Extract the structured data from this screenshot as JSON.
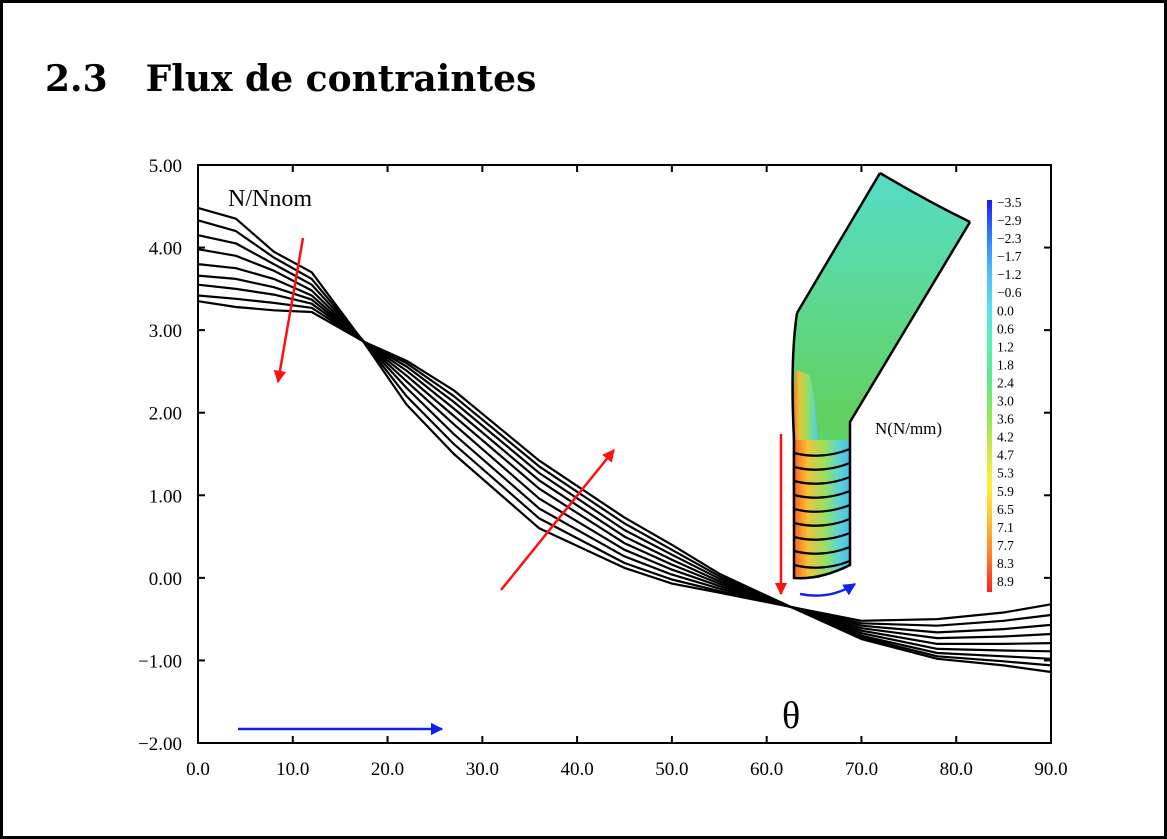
{
  "section": {
    "number": "2.3",
    "title": "Flux de contraintes"
  },
  "chart_data": {
    "type": "line",
    "title": "",
    "xlabel": "θ",
    "ylabel": "N/Nnom",
    "xlim": [
      0,
      90
    ],
    "ylim": [
      -2,
      5
    ],
    "x_ticks": [
      "0.0",
      "10.0",
      "20.0",
      "30.0",
      "40.0",
      "50.0",
      "60.0",
      "70.0",
      "80.0",
      "90.0"
    ],
    "y_ticks": [
      "5.00",
      "4.00",
      "3.00",
      "2.00",
      "1.00",
      "0.00",
      "−1.00",
      "−2.00"
    ],
    "x": [
      0,
      4,
      8,
      12,
      17.5,
      22,
      27,
      36,
      45,
      50,
      55,
      62.5,
      70,
      78,
      85,
      90
    ],
    "series": [
      {
        "values": [
          4.48,
          4.35,
          3.95,
          3.7,
          2.85,
          2.1,
          1.5,
          0.6,
          0.12,
          -0.07,
          -0.18,
          -0.35,
          -0.52,
          -0.5,
          -0.42,
          -0.32
        ]
      },
      {
        "values": [
          4.33,
          4.2,
          3.88,
          3.62,
          2.86,
          2.2,
          1.62,
          0.72,
          0.18,
          -0.02,
          -0.16,
          -0.35,
          -0.55,
          -0.58,
          -0.52,
          -0.45
        ]
      },
      {
        "values": [
          4.15,
          4.05,
          3.8,
          3.55,
          2.86,
          2.3,
          1.74,
          0.84,
          0.26,
          0.04,
          -0.13,
          -0.35,
          -0.58,
          -0.66,
          -0.62,
          -0.57
        ]
      },
      {
        "values": [
          3.98,
          3.9,
          3.72,
          3.48,
          2.86,
          2.38,
          1.86,
          0.96,
          0.34,
          0.1,
          -0.1,
          -0.35,
          -0.61,
          -0.73,
          -0.71,
          -0.68
        ]
      },
      {
        "values": [
          3.8,
          3.75,
          3.62,
          3.42,
          2.86,
          2.45,
          1.96,
          1.08,
          0.42,
          0.16,
          -0.07,
          -0.35,
          -0.64,
          -0.8,
          -0.8,
          -0.79
        ]
      },
      {
        "values": [
          3.66,
          3.62,
          3.52,
          3.37,
          2.86,
          2.51,
          2.05,
          1.18,
          0.5,
          0.22,
          -0.04,
          -0.35,
          -0.67,
          -0.86,
          -0.88,
          -0.89
        ]
      },
      {
        "values": [
          3.55,
          3.5,
          3.43,
          3.32,
          2.86,
          2.56,
          2.13,
          1.27,
          0.58,
          0.28,
          -0.01,
          -0.35,
          -0.7,
          -0.91,
          -0.95,
          -0.98
        ]
      },
      {
        "values": [
          3.42,
          3.38,
          3.33,
          3.27,
          2.86,
          2.6,
          2.2,
          1.35,
          0.66,
          0.34,
          0.02,
          -0.35,
          -0.72,
          -0.95,
          -1.01,
          -1.06
        ]
      },
      {
        "values": [
          3.35,
          3.28,
          3.24,
          3.22,
          2.86,
          2.63,
          2.27,
          1.42,
          0.73,
          0.4,
          0.05,
          -0.35,
          -0.74,
          -0.98,
          -1.06,
          -1.14
        ]
      }
    ]
  },
  "annotations": {
    "y_axis_label": "N/Nnom",
    "x_axis_symbol": "θ",
    "inset_label": "N(N/mm)"
  },
  "colorbar": {
    "labels": [
      "−3.5",
      "−2.9",
      "−2.3",
      "−1.7",
      "−1.2",
      "−0.6",
      "0.0",
      "0.6",
      "1.2",
      "1.8",
      "2.4",
      "3.0",
      "3.6",
      "4.2",
      "4.7",
      "5.3",
      "5.9",
      "6.5",
      "7.1",
      "7.7",
      "8.3",
      "8.9"
    ],
    "gradient": [
      "#1a1aff",
      "#2f7dff",
      "#4fbcff",
      "#54e0ee",
      "#5cf0b8",
      "#5ee88a",
      "#8de85a",
      "#cfe84a",
      "#fff03a",
      "#ffc030",
      "#ff7a2a",
      "#ff2020"
    ]
  },
  "colors": {
    "curves": "#000000",
    "red_arrows": "#ff1010",
    "blue_arrows": "#1020f0"
  }
}
